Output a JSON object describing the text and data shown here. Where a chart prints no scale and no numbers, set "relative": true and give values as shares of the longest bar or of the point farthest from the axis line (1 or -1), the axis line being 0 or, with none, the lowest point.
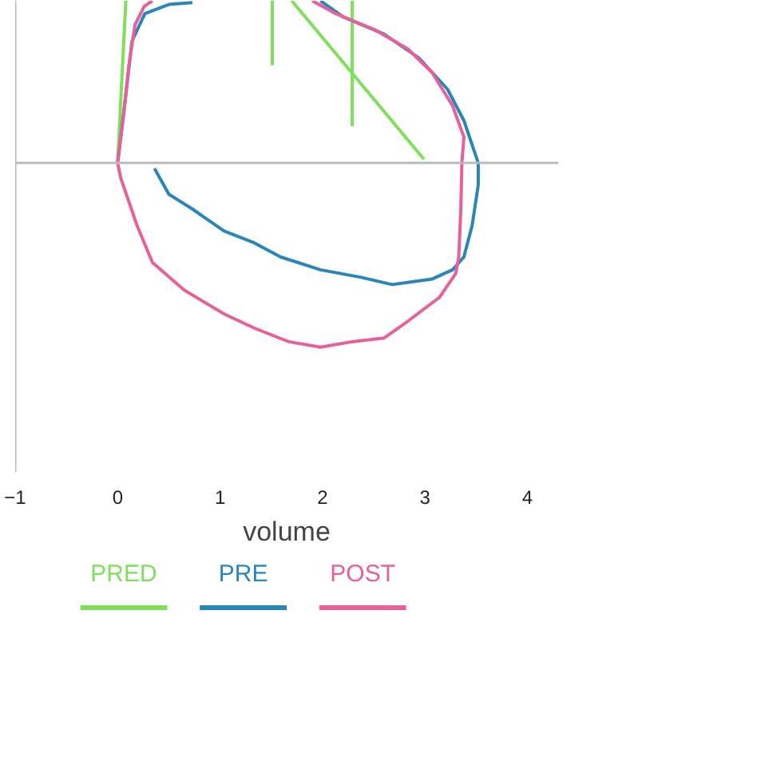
{
  "chart_data": {
    "type": "line",
    "relative": true,
    "xlabel": "volume",
    "xlim": [
      -1,
      4.3
    ],
    "xticks": [
      -1,
      0,
      1,
      2,
      3,
      4
    ],
    "legend": "bottom",
    "grid": false,
    "series": [
      {
        "name": "PRED",
        "color": "#7ee05a",
        "x": [
          0,
          0.08,
          null,
          1.51,
          1.51,
          null,
          2.29,
          2.29,
          null,
          1.7,
          2.99
        ],
        "values": [
          0,
          0.88,
          null,
          0.88,
          0.53,
          null,
          0.88,
          0.2,
          null,
          0.88,
          0.02
        ]
      },
      {
        "name": "PRE",
        "color": "#2a86b8",
        "x": [
          0,
          0.078,
          0.14,
          0.265,
          0.5,
          0.73,
          null,
          1.98,
          2.21,
          2.6,
          2.94,
          3.22,
          3.38,
          3.49,
          3.52,
          3.52,
          3.46,
          3.38,
          3.27,
          3.07,
          2.68,
          2.37,
          1.98,
          1.59,
          1.32,
          1.04,
          0.73,
          0.5,
          0.36
        ],
        "values": [
          0,
          0.36,
          0.66,
          0.81,
          0.86,
          0.87,
          null,
          0.88,
          0.79,
          0.7,
          0.57,
          0.4,
          0.23,
          0.05,
          0,
          -0.12,
          -0.34,
          -0.51,
          -0.58,
          -0.63,
          -0.66,
          -0.62,
          -0.58,
          -0.51,
          -0.43,
          -0.37,
          -0.25,
          -0.17,
          -0.03
        ]
      },
      {
        "name": "POST",
        "color": "#e8609a",
        "x": [
          0,
          0.06,
          0.11,
          0.17,
          0.26,
          0.34,
          null,
          1.9,
          2.13,
          2.52,
          2.83,
          3.07,
          3.27,
          3.38,
          3.36,
          3.35,
          3.33,
          3.3,
          3.14,
          2.83,
          2.6,
          2.29,
          1.98,
          1.67,
          1.35,
          1.04,
          0.65,
          0.34,
          0.19,
          0.11,
          0.03,
          0
        ],
        "values": [
          0,
          0.27,
          0.53,
          0.75,
          0.85,
          0.88,
          null,
          0.88,
          0.81,
          0.72,
          0.62,
          0.49,
          0.31,
          0.14,
          0,
          -0.25,
          -0.51,
          -0.6,
          -0.73,
          -0.86,
          -0.95,
          -0.97,
          -1,
          -0.97,
          -0.9,
          -0.82,
          -0.69,
          -0.54,
          -0.34,
          -0.21,
          -0.08,
          0
        ]
      }
    ]
  }
}
